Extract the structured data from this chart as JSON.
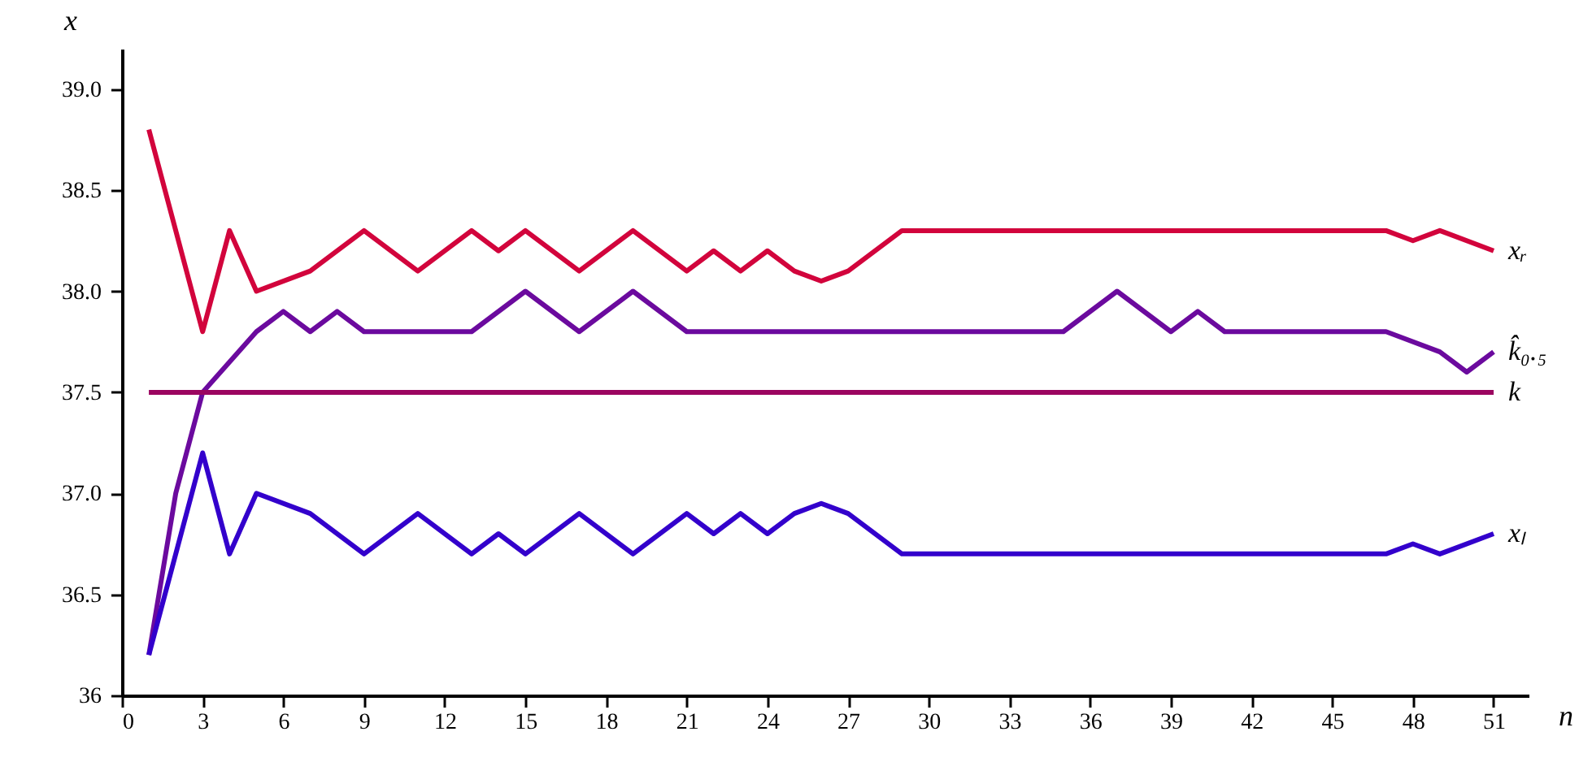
{
  "chart_data": {
    "type": "line",
    "xlabel": "n",
    "ylabel": "x",
    "xlim": [
      0,
      52.3
    ],
    "ylim": [
      36,
      39.2
    ],
    "xticks": [
      0,
      3,
      6,
      9,
      12,
      15,
      18,
      21,
      24,
      27,
      30,
      33,
      36,
      39,
      42,
      45,
      48,
      51
    ],
    "yticks": [
      36,
      36.5,
      {
        "value": 37,
        "label": "37.0"
      },
      37.5,
      {
        "value": 38,
        "label": "38.0"
      },
      38.5,
      {
        "value": 39,
        "label": "39.0"
      }
    ],
    "grid": false,
    "legend": false,
    "marker": "none",
    "line_style": "solid",
    "series": [
      {
        "name": "xᵣ",
        "color": "#d2043c",
        "x": [
          1,
          3,
          4,
          5,
          7,
          9,
          11,
          13,
          14,
          15,
          17,
          19,
          21,
          22,
          23,
          24,
          25,
          26,
          27,
          29,
          47,
          48,
          49,
          51
        ],
        "values": [
          38.8,
          37.8,
          38.3,
          38.0,
          38.1,
          38.3,
          38.1,
          38.3,
          38.2,
          38.3,
          38.1,
          38.3,
          38.1,
          38.2,
          38.1,
          38.2,
          38.1,
          38.05,
          38.1,
          38.3,
          38.3,
          38.25,
          38.3,
          38.2
        ]
      },
      {
        "name": "k̂₀.₅",
        "color": "#6b0a9e",
        "x": [
          1,
          2,
          3,
          5,
          6,
          7,
          8,
          9,
          13,
          15,
          17,
          19,
          21,
          35,
          37,
          39,
          40,
          41,
          47,
          49,
          50,
          51
        ],
        "values": [
          36.2,
          37.0,
          37.5,
          37.8,
          37.9,
          37.8,
          37.9,
          37.8,
          37.8,
          38.0,
          37.8,
          38.0,
          37.8,
          37.8,
          38.0,
          37.8,
          37.9,
          37.8,
          37.8,
          37.7,
          37.6,
          37.7
        ]
      },
      {
        "name": "k",
        "color": "#9b0560",
        "x": [
          1,
          51
        ],
        "values": [
          37.5,
          37.5
        ]
      },
      {
        "name": "xₗ",
        "color": "#3300cc",
        "x": [
          1,
          3,
          4,
          5,
          7,
          9,
          11,
          13,
          14,
          15,
          17,
          19,
          21,
          22,
          23,
          24,
          25,
          26,
          27,
          29,
          47,
          48,
          49,
          51
        ],
        "values": [
          36.2,
          37.2,
          36.7,
          37.0,
          36.9,
          36.7,
          36.9,
          36.7,
          36.8,
          36.7,
          36.9,
          36.7,
          36.9,
          36.8,
          36.9,
          36.8,
          36.9,
          36.95,
          36.9,
          36.7,
          36.7,
          36.75,
          36.7,
          36.8
        ]
      }
    ]
  }
}
